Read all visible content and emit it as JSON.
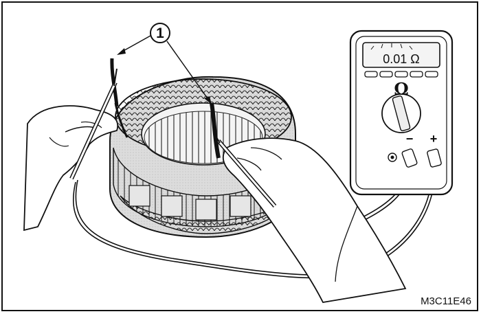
{
  "callout": {
    "number": "1"
  },
  "multimeter": {
    "display_reading": "0.01 Ω",
    "mode_symbol": "Ω",
    "terminal_negative": "−",
    "terminal_positive": "+"
  },
  "figure_code": "M3C11E46",
  "icons": [
    "stator-winding-illustration",
    "multimeter-icon",
    "test-probe-icon",
    "hand-illustration"
  ]
}
